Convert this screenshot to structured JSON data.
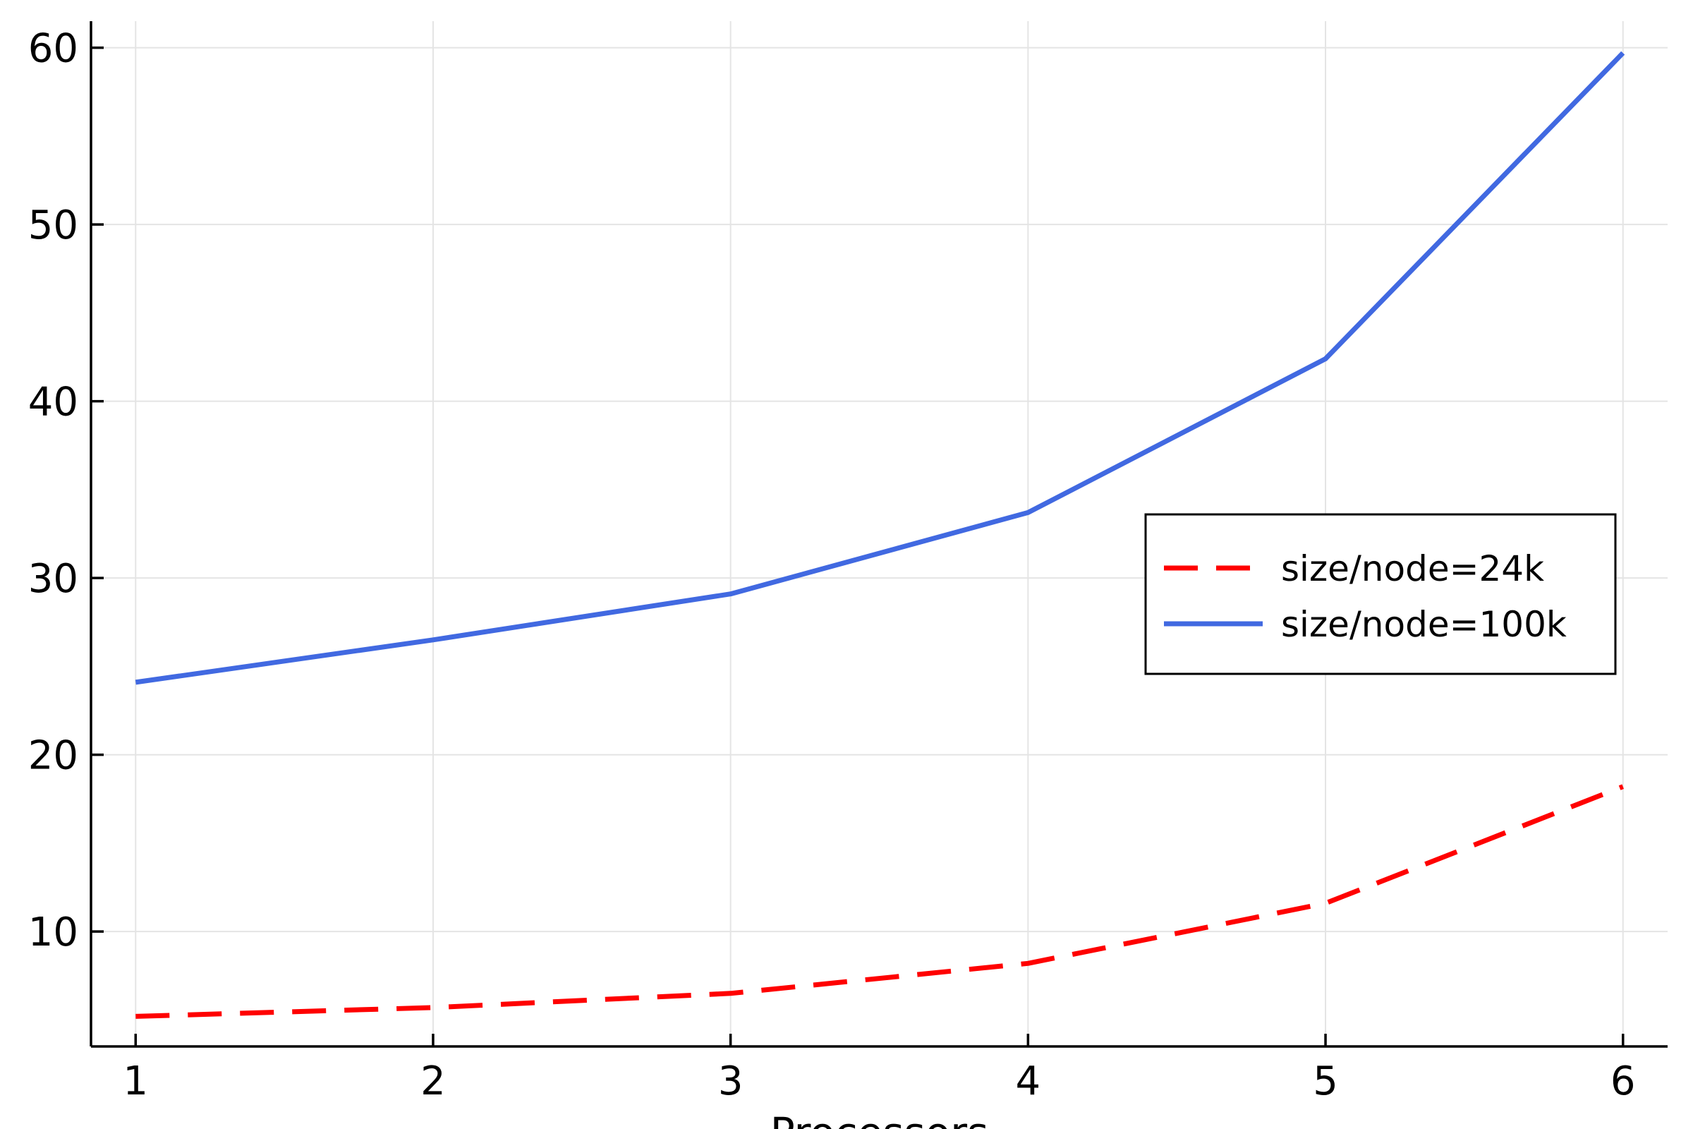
{
  "chart_data": {
    "type": "line",
    "title": "",
    "xlabel": "Processors",
    "ylabel": "",
    "x": [
      1,
      2,
      3,
      4,
      5,
      6
    ],
    "xlim": [
      0.85,
      6.15
    ],
    "ylim": [
      3.5,
      61.5
    ],
    "xticks": [
      "1",
      "2",
      "3",
      "4",
      "5",
      "6"
    ],
    "yticks": [
      "10",
      "20",
      "30",
      "40",
      "50",
      "60"
    ],
    "grid": true,
    "legend": "right",
    "series": [
      {
        "name": "size/node=24k",
        "values": [
          5.2,
          5.7,
          6.5,
          8.2,
          11.6,
          18.2
        ],
        "color": "#ff0000",
        "style": "dashed"
      },
      {
        "name": "size/node=100k",
        "values": [
          24.1,
          26.5,
          29.1,
          33.7,
          42.4,
          59.7
        ],
        "color": "#4169e1",
        "style": "solid"
      }
    ]
  }
}
